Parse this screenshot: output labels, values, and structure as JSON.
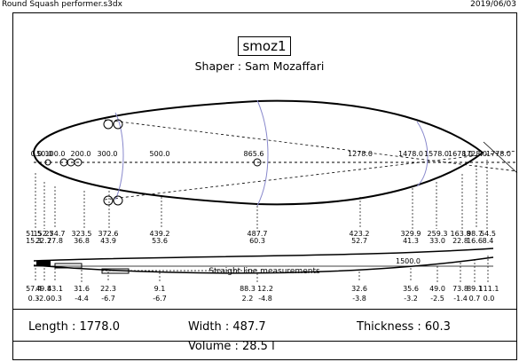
{
  "window": {
    "file_name": "Round Squash performer.s3dx",
    "date": "2019/06/03"
  },
  "board": {
    "name": "smoz1",
    "shaper": "Shaper : Sam Mozaffari"
  },
  "outline": {
    "positions": [
      "0.0",
      "50.0",
      "100.0",
      "200.0",
      "300.0",
      "500.0",
      "865.6",
      "1278.0",
      "1478.0",
      "1578.0",
      "1678.0",
      "1728.0",
      "1778.0"
    ]
  },
  "widths": {
    "top": [
      "51.5",
      "152.7",
      "254.7",
      "323.5",
      "372.6",
      "439.2",
      "487.7",
      "423.2",
      "329.9",
      "259.3",
      "163.8",
      "98.7",
      "54.5"
    ],
    "bottom": [
      "15.3",
      "22.7",
      "27.8",
      "36.8",
      "43.9",
      "53.6",
      "60.3",
      "52.7",
      "41.3",
      "33.0",
      "22.8",
      "16.6",
      "8.4"
    ]
  },
  "rocker": {
    "caption": "Straight line measurements",
    "note": "1500.0",
    "values": [
      "57.4",
      "49.8",
      "43.1",
      "31.6",
      "22.3",
      "9.1",
      "88.3",
      "12.2",
      "32.6",
      "35.6",
      "49.0",
      "73.8",
      "89.1",
      "111.1"
    ],
    "values2": [
      "0.3",
      "-2.0",
      "-0.3",
      "-4.4",
      "-6.7",
      "-6.7",
      "2.2",
      "-4.8",
      "-3.8",
      "-3.2",
      "-2.5",
      "-1.4",
      "0.7",
      "0.0"
    ]
  },
  "stats": {
    "length": "Length : 1778.0",
    "width": "Width : 487.7",
    "thickness": "Thickness : 60.3",
    "volume": "Volume :  28.5 l"
  }
}
